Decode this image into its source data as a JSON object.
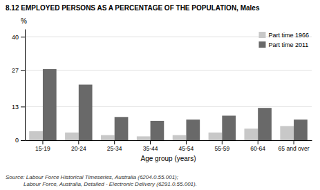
{
  "chart_data": {
    "type": "bar",
    "title": "8.12 EMPLOYED PERSONS AS A PERCENTAGE OF THE POPULATION, Males",
    "ylabel": "%",
    "xlabel": "Age group (years)",
    "categories": [
      "15-19",
      "20-24",
      "25-34",
      "35-44",
      "45-54",
      "55-59",
      "60-64",
      "65 and over"
    ],
    "series": [
      {
        "name": "Part time 1966",
        "color": "#c8c8c8",
        "values": [
          3.5,
          3.0,
          2.0,
          1.5,
          2.0,
          3.0,
          4.5,
          5.5
        ]
      },
      {
        "name": "Part time 2011",
        "color": "#696969",
        "values": [
          27.5,
          21.5,
          9.0,
          7.5,
          8.0,
          9.5,
          12.5,
          8.0
        ]
      }
    ],
    "ylim": [
      0,
      43
    ],
    "yticks": [
      0,
      13,
      27,
      40
    ],
    "grid": true,
    "legend": "top-right",
    "annotations": [
      "Source: Labour Force Historical Timeseries, Australia (6204.0.55.001);",
      "Labour Force, Australia, Detailed - Electronic Delivery (6291.0.55.001)."
    ]
  }
}
